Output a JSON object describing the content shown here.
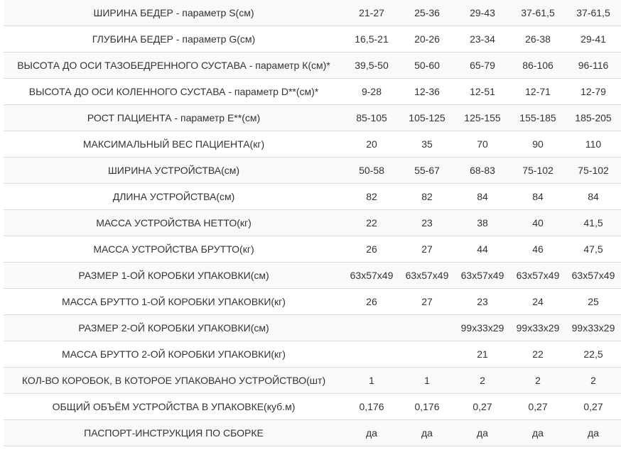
{
  "rows": [
    {
      "label": "ШИРИНА БЕДЕР - параметр S(см)",
      "values": [
        "21-27",
        "25-36",
        "29-43",
        "37-61,5",
        "37-61,5"
      ]
    },
    {
      "label": "ГЛУБИНА БЕДЕР - параметр G(см)",
      "values": [
        "16,5-21",
        "20-26",
        "23-34",
        "26-38",
        "29-41"
      ]
    },
    {
      "label": "ВЫСОТА ДО ОСИ ТАЗОБЕДРЕННОГО СУСТАВА - параметр К(см)*",
      "values": [
        "39,5-50",
        "50-60",
        "65-79",
        "86-106",
        "96-116"
      ]
    },
    {
      "label": "ВЫСОТА ДО ОСИ КОЛЕННОГО СУСТАВА - параметр D**(см)*",
      "values": [
        "9-28",
        "12-36",
        "12-51",
        "12-71",
        "12-79"
      ]
    },
    {
      "label": "РОСТ ПАЦИЕНТА - параметр E**(см)",
      "values": [
        "85-105",
        "105-125",
        "125-155",
        "155-185",
        "185-205"
      ]
    },
    {
      "label": "МАКСИМАЛЬНЫЙ ВЕС ПАЦИЕНТА(кг)",
      "values": [
        "20",
        "35",
        "70",
        "90",
        "110"
      ]
    },
    {
      "label": "ШИРИНА УСТРОЙСТВА(см)",
      "values": [
        "50-58",
        "55-67",
        "68-83",
        "75-102",
        "75-102"
      ]
    },
    {
      "label": "ДЛИНА УСТРОЙСТВА(см)",
      "values": [
        "82",
        "82",
        "84",
        "84",
        "84"
      ]
    },
    {
      "label": "МАССА УСТРОЙСТВА НЕТТО(кг)",
      "values": [
        "22",
        "23",
        "38",
        "40",
        "41,5"
      ]
    },
    {
      "label": "МАССА УСТРОЙСТВА БРУТТО(кг)",
      "values": [
        "26",
        "27",
        "44",
        "46",
        "47,5"
      ]
    },
    {
      "label": "РАЗМЕР 1-ОЙ КОРОБКИ УПАКОВКИ(см)",
      "values": [
        "63x57x49",
        "63x57x49",
        "63x57x49",
        "63x57x49",
        "63x57x49"
      ]
    },
    {
      "label": "МАССА БРУТТО 1-ОЙ КОРОБКИ УПАКОВКИ(кг)",
      "values": [
        "26",
        "27",
        "23",
        "24",
        "25"
      ]
    },
    {
      "label": "РАЗМЕР 2-ОЙ КОРОБКИ УПАКОВКИ(см)",
      "values": [
        "",
        "",
        "99x33x29",
        "99x33x29",
        "99x33x29"
      ]
    },
    {
      "label": "МАССА БРУТТО 2-ОЙ КОРОБКИ УПАКОВКИ(кг)",
      "values": [
        "",
        "",
        "21",
        "22",
        "22,5"
      ]
    },
    {
      "label": "КОЛ-ВО КОРОБОК, В КОТОРОЕ УПАКОВАНО УСТРОЙСТВО(шт)",
      "values": [
        "1",
        "1",
        "2",
        "2",
        "2"
      ]
    },
    {
      "label": "ОБЩИЙ ОБЪЁМ УСТРОЙСТВА В УПАКОВКЕ(куб.м)",
      "values": [
        "0,176",
        "0,176",
        "0,27",
        "0,27",
        "0,27"
      ]
    },
    {
      "label": "ПАСПОРТ-ИНСТРУКЦИЯ ПО СБОРКЕ",
      "values": [
        "да",
        "да",
        "да",
        "да",
        "да"
      ]
    }
  ]
}
